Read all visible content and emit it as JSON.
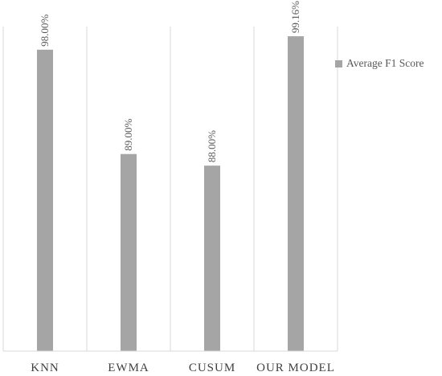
{
  "chart_data": {
    "type": "bar",
    "categories": [
      "KNN",
      "EWMA",
      "CUSUM",
      "OUR MODEL"
    ],
    "series": [
      {
        "name": "Average F1 Score",
        "values": [
          98.0,
          89.0,
          88.0,
          99.16
        ],
        "labels": [
          "98.00%",
          "89.00%",
          "88.00%",
          "99.16%"
        ],
        "color": "#a5a5a5"
      }
    ],
    "title": "",
    "xlabel": "",
    "ylabel": "",
    "ylim": [
      72,
      100
    ],
    "grid": true,
    "legend_position": "right"
  }
}
